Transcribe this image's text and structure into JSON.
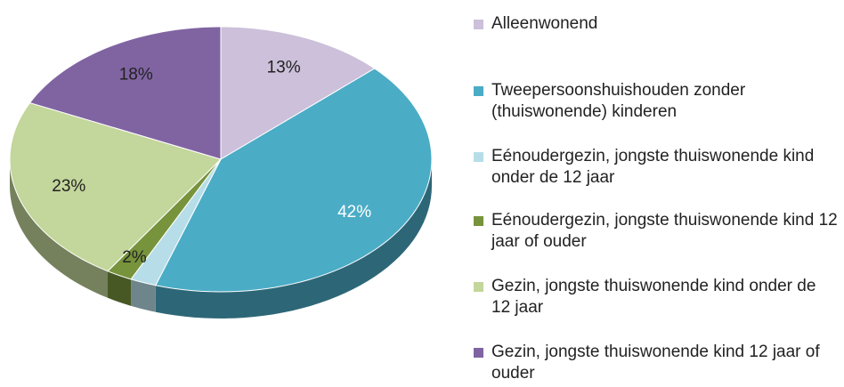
{
  "chart_data": {
    "type": "pie",
    "categories": [
      "Alleenwonend",
      "Tweepersoonshuishouden zonder (thuiswonende) kinderen",
      "Eénoudergezin, jongste thuiswonende kind onder de 12 jaar",
      "Eénoudergezin, jongste thuiswonende kind 12 jaar of ouder",
      "Gezin, jongste thuiswonende kind onder de 12 jaar",
      "Gezin, jongste thuiswonende kind 12 jaar of ouder"
    ],
    "values": [
      13,
      42,
      2,
      2,
      23,
      18
    ],
    "value_labels": [
      "13%",
      "42%",
      null,
      "2%",
      "23%",
      "18%"
    ],
    "colors": [
      "#ccc0da",
      "#4bacc6",
      "#b7dee8",
      "#77933c",
      "#c3d69b",
      "#8064a2"
    ],
    "legend": "right"
  }
}
